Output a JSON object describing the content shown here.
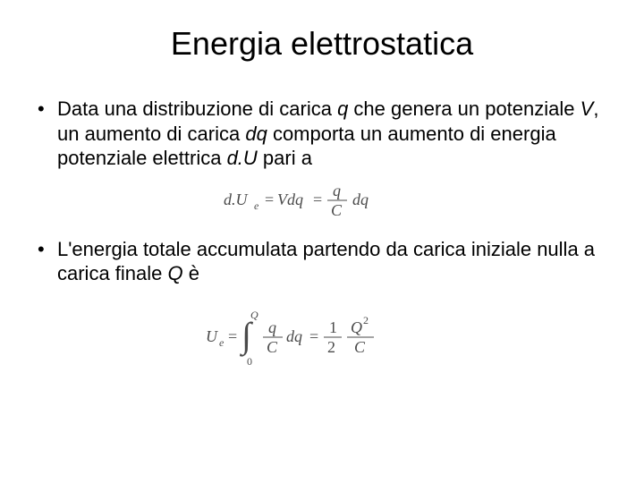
{
  "title": "Energia elettrostatica",
  "bullets": [
    {
      "segments": [
        {
          "t": "Data una distribuzione di carica ",
          "i": false
        },
        {
          "t": "q",
          "i": true
        },
        {
          "t": " che genera un potenziale ",
          "i": false
        },
        {
          "t": "V",
          "i": true
        },
        {
          "t": ", un aumento di carica ",
          "i": false
        },
        {
          "t": "dq",
          "i": true
        },
        {
          "t": " comporta un aumento di energia potenziale elettrica ",
          "i": false
        },
        {
          "t": "d.U",
          "i": true
        },
        {
          "t": " pari a",
          "i": false
        }
      ]
    },
    {
      "segments": [
        {
          "t": "L'energia totale accumulata partendo da carica iniziale nulla a carica finale ",
          "i": false
        },
        {
          "t": "Q",
          "i": true
        },
        {
          "t": " è",
          "i": false
        }
      ]
    }
  ],
  "formula1": {
    "lhs": "d.U",
    "sub": "e",
    "mid": "Vdq",
    "frac_num": "q",
    "frac_den": "C",
    "rhs": "dq",
    "color": "#4a4a4a"
  },
  "formula2": {
    "lhs": "U",
    "sub": "e",
    "int_upper": "Q",
    "int_lower": "0",
    "frac1_num": "q",
    "frac1_den": "C",
    "dq": "dq",
    "frac2_num": "1",
    "frac2_den": "2",
    "frac3_num_base": "Q",
    "frac3_num_exp": "2",
    "frac3_den": "C",
    "color": "#4a4a4a"
  },
  "style": {
    "background": "#ffffff",
    "text_color": "#000000",
    "title_fontsize": 36,
    "body_fontsize": 22,
    "formula_color": "#4a4a4a"
  }
}
